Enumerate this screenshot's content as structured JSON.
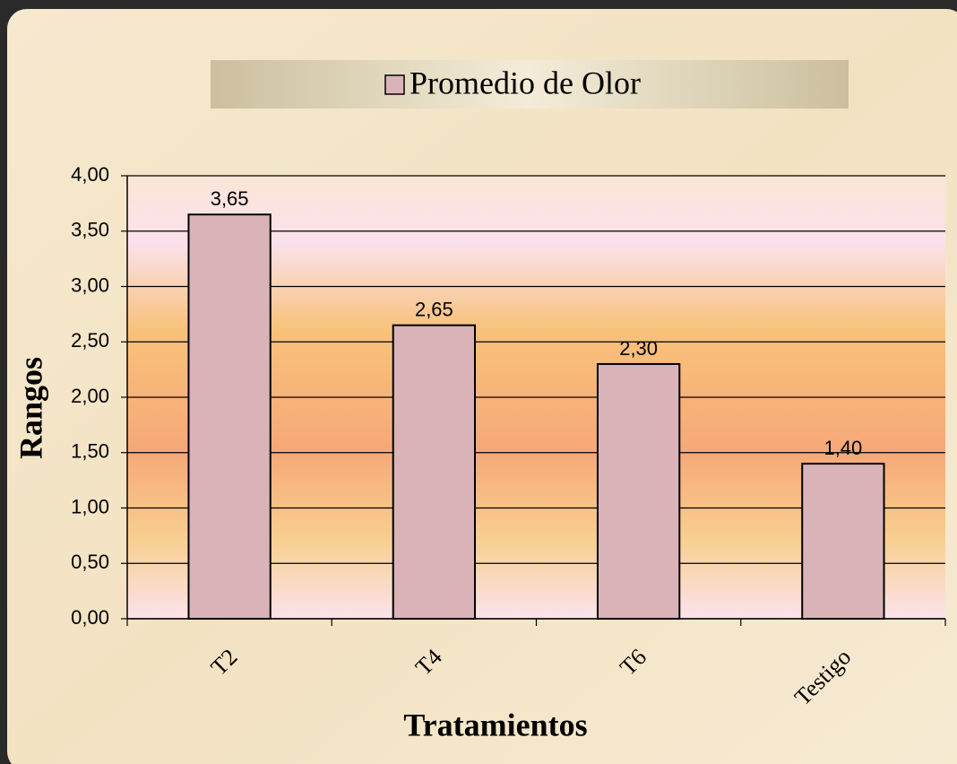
{
  "chart_data": {
    "type": "bar",
    "y_label": "Rangos",
    "x_label": "Tratamientos",
    "categories": [
      "T2",
      "T4",
      "T6",
      "Testigo"
    ],
    "series": [
      {
        "name": "Promedio de Olor",
        "color": "#d9b3b8",
        "values": [
          3.65,
          2.65,
          2.3,
          1.4
        ],
        "value_labels": [
          "3,65",
          "2,65",
          "2,30",
          "1,40"
        ]
      }
    ],
    "ylim": [
      0,
      4
    ],
    "yticks": [
      {
        "value": 0,
        "label": "0,00"
      },
      {
        "value": 0.5,
        "label": "0,50"
      },
      {
        "value": 1,
        "label": "1,00"
      },
      {
        "value": 1.5,
        "label": "1,50"
      },
      {
        "value": 2,
        "label": "2,00"
      },
      {
        "value": 2.5,
        "label": "2,50"
      },
      {
        "value": 3,
        "label": "3,00"
      },
      {
        "value": 3.5,
        "label": "3,50"
      },
      {
        "value": 4,
        "label": "4,00"
      }
    ],
    "grid": true,
    "legend": "top"
  }
}
